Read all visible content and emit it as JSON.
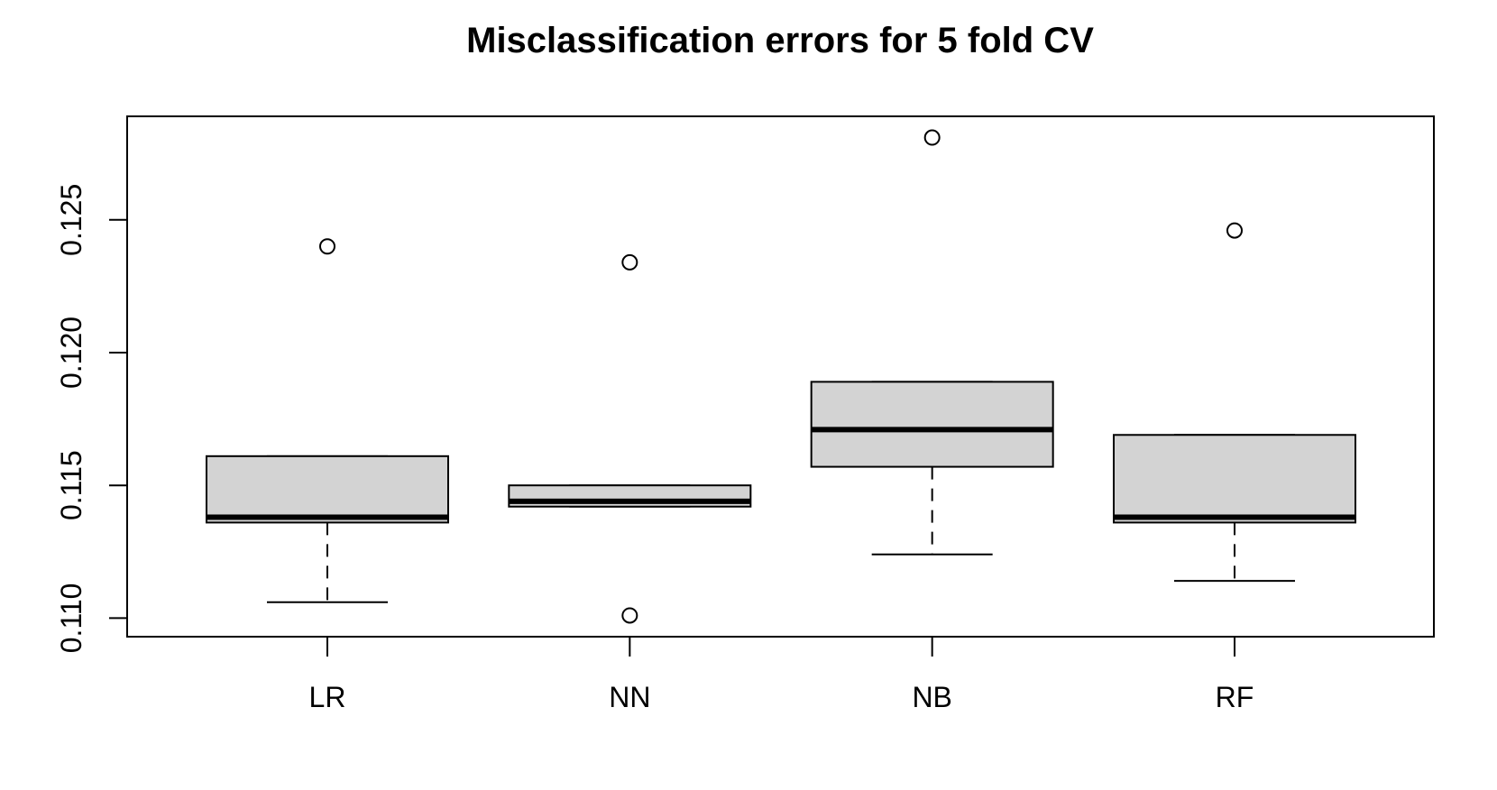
{
  "chart_data": {
    "type": "boxplot",
    "title": "Misclassification errors for 5 fold CV",
    "xlabel": "",
    "ylabel": "",
    "categories": [
      "LR",
      "NN",
      "NB",
      "RF"
    ],
    "ylim": [
      0.1093,
      0.1289
    ],
    "y_ticks": [
      0.11,
      0.115,
      0.12,
      0.125
    ],
    "y_tick_labels": [
      "0.110",
      "0.115",
      "0.120",
      "0.125"
    ],
    "grid": false,
    "box_fill": "#d3d3d3",
    "line_color": "#000000",
    "background": "#ffffff",
    "boxes": [
      {
        "category": "LR",
        "whisker_low": 0.1106,
        "q1": 0.1136,
        "median": 0.1138,
        "q3": 0.1161,
        "whisker_high": 0.1161,
        "outliers": [
          0.124
        ]
      },
      {
        "category": "NN",
        "whisker_low": 0.1142,
        "q1": 0.1142,
        "median": 0.1144,
        "q3": 0.115,
        "whisker_high": 0.115,
        "outliers": [
          0.1234,
          0.1101
        ]
      },
      {
        "category": "NB",
        "whisker_low": 0.1124,
        "q1": 0.1157,
        "median": 0.1171,
        "q3": 0.1189,
        "whisker_high": 0.1189,
        "outliers": [
          0.1281
        ]
      },
      {
        "category": "RF",
        "whisker_low": 0.1114,
        "q1": 0.1136,
        "median": 0.1138,
        "q3": 0.1169,
        "whisker_high": 0.1169,
        "outliers": [
          0.1246
        ]
      }
    ]
  }
}
